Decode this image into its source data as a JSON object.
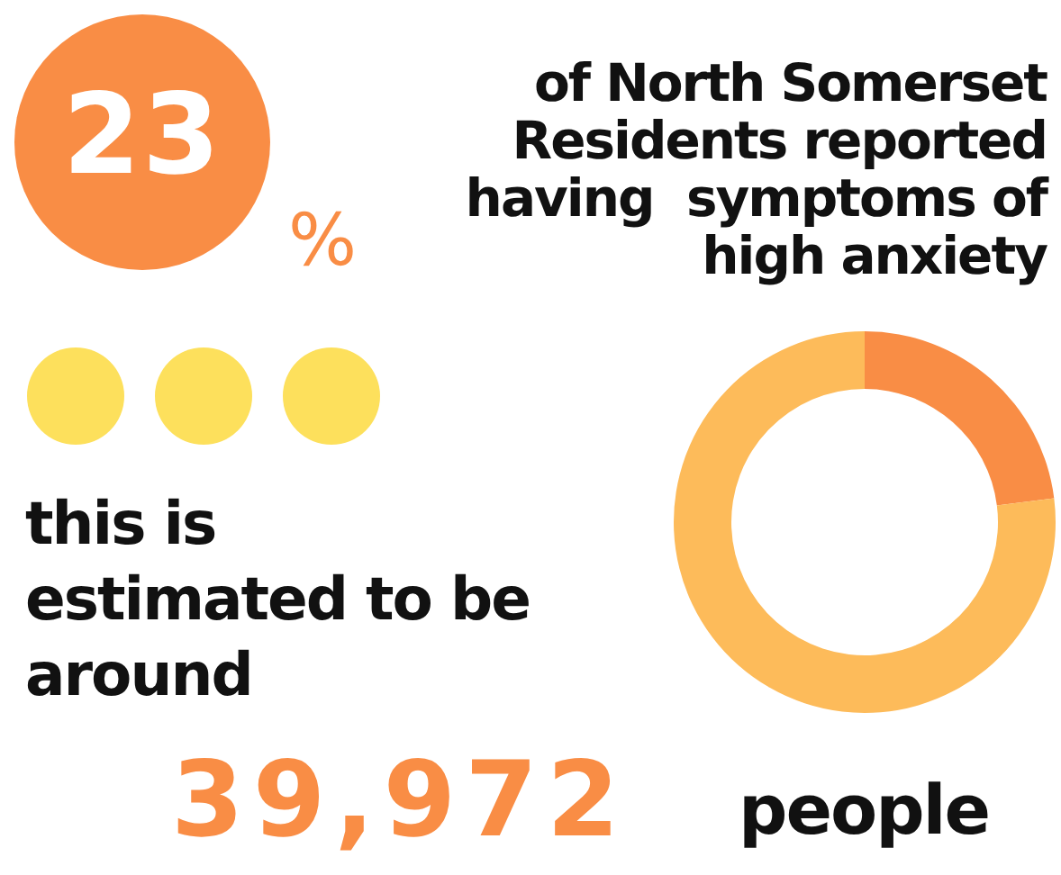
{
  "chart_data": {
    "type": "donut",
    "categories": [
      null,
      null
    ],
    "values": [
      23,
      77
    ],
    "colors": [
      "#f98d45",
      "#fdbb5a"
    ],
    "annotations": [
      "23",
      "%",
      "of North Somerset Residents reported having  symptoms of high anxiety",
      "this is estimated to be around",
      "39,972",
      "people"
    ]
  }
}
